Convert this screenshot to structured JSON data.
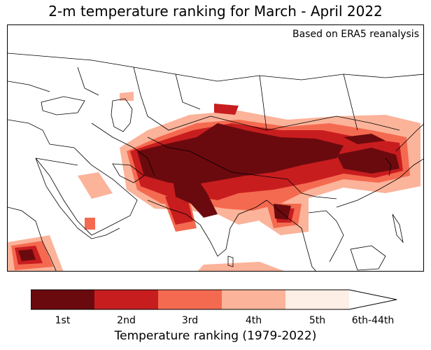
{
  "title": "2-m temperature ranking for March - April 2022",
  "source_note": "Based on ERA5 reanalysis",
  "colorbar": {
    "label": "Temperature ranking (1979-2022)",
    "categories": [
      {
        "label": "1st",
        "color": "#6b0a0e"
      },
      {
        "label": "2nd",
        "color": "#c81d1f"
      },
      {
        "label": "3rd",
        "color": "#f46a50"
      },
      {
        "label": "4th",
        "color": "#fbb39a"
      },
      {
        "label": "5th",
        "color": "#fdeee6"
      },
      {
        "label": "6th-44th",
        "color": "#ffffff"
      }
    ]
  },
  "colors": {
    "rank1": "#6b0a0e",
    "rank2": "#c81d1f",
    "rank3": "#f46a50",
    "rank4": "#fbb39a",
    "rank5": "#fdeee6",
    "coastline": "#000000"
  }
}
